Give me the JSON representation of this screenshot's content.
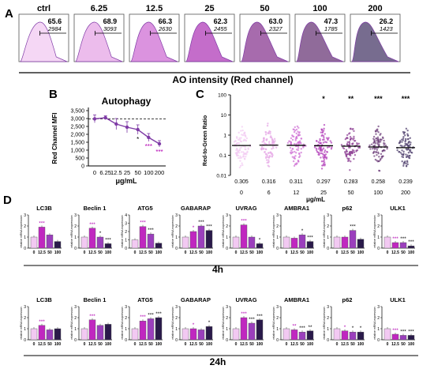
{
  "colors": {
    "c0": "#f2c9f2",
    "c1": "#e6a6e6",
    "c2": "#cf6fd4",
    "c3": "#b03cb8",
    "c4": "#8a3a92",
    "c5": "#6b3a78",
    "c6": "#4a3b6a",
    "accent": "#7f3ba6",
    "magenta": "#c027c0",
    "dark": "#2a1a4a",
    "star": "#b300b3"
  },
  "panel_labels": {
    "a": "A",
    "b": "B",
    "c": "C",
    "d": "D"
  },
  "chart_data": [
    {
      "type": "histogram-panels",
      "xlabel": "AO intensity (Red channel)",
      "panels": [
        {
          "label": "ctrl",
          "pct": "65.6",
          "mfi": "2984"
        },
        {
          "label": "6.25",
          "pct": "68.9",
          "mfi": "3093"
        },
        {
          "label": "12.5",
          "pct": "66.3",
          "mfi": "2630"
        },
        {
          "label": "25",
          "pct": "62.3",
          "mfi": "2455"
        },
        {
          "label": "50",
          "pct": "63.0",
          "mfi": "2327"
        },
        {
          "label": "100",
          "pct": "47.3",
          "mfi": "1785"
        },
        {
          "label": "200",
          "pct": "26.2",
          "mfi": "1423"
        }
      ]
    },
    {
      "type": "line",
      "title": "Autophagy",
      "ylabel": "Red Channel MFI",
      "xlabel": "μg/mL",
      "categories": [
        "0",
        "6.25",
        "12.5",
        "25",
        "50",
        "100",
        "200"
      ],
      "values": [
        2980,
        3050,
        2650,
        2450,
        2300,
        1800,
        1400
      ],
      "errors": [
        250,
        120,
        350,
        350,
        300,
        250,
        200
      ],
      "yticks": [
        "0",
        "500",
        "1,000",
        "1,500",
        "2,000",
        "2,500",
        "3,000",
        "3,500"
      ],
      "ylim": [
        0,
        3500
      ],
      "reference": 2980,
      "stars": [
        "",
        "",
        "",
        "",
        "*",
        "***",
        "***"
      ]
    },
    {
      "type": "scatter",
      "ylabel": "Red-to-Green Ratio",
      "xlabel": "μg/mL",
      "yscale": "log",
      "yticks": [
        "0.01",
        "0.1",
        "1",
        "10",
        "100"
      ],
      "categories": [
        "0",
        "6",
        "12",
        "25",
        "50",
        "100",
        "200"
      ],
      "medians": [
        "0.305",
        "0.316",
        "0.311",
        "0.297",
        "0.283",
        "0.258",
        "0.239"
      ],
      "stars": [
        "",
        "",
        "",
        "*",
        "**",
        "***",
        "***"
      ]
    },
    {
      "type": "bar-grid",
      "ylabel": "relative mRNA expression",
      "categories": [
        "0",
        "12.5",
        "50",
        "100"
      ],
      "rows": [
        {
          "time": "4h",
          "genes": [
            {
              "name": "LC3B",
              "values": [
                1.0,
                1.9,
                1.2,
                0.6
              ],
              "stars": [
                "",
                "***",
                "",
                ""
              ]
            },
            {
              "name": "Beclin 1",
              "values": [
                1.0,
                1.8,
                1.0,
                0.4
              ],
              "stars": [
                "",
                "***",
                "*",
                "***"
              ]
            },
            {
              "name": "ATG5",
              "values": [
                1.0,
                2.6,
                1.7,
                0.6
              ],
              "stars": [
                "",
                "***",
                "***",
                ""
              ]
            },
            {
              "name": "GABARAP",
              "values": [
                1.0,
                1.5,
                2.0,
                1.6
              ],
              "stars": [
                "",
                "*",
                "***",
                "***"
              ]
            },
            {
              "name": "UVRAG",
              "values": [
                1.0,
                2.1,
                1.0,
                0.4
              ],
              "stars": [
                "",
                "***",
                "",
                "*"
              ]
            },
            {
              "name": "AMBRA1",
              "values": [
                1.0,
                0.9,
                1.2,
                0.6
              ],
              "stars": [
                "",
                "",
                "*",
                "***"
              ]
            },
            {
              "name": "p62",
              "values": [
                1.0,
                1.0,
                1.6,
                0.8
              ],
              "stars": [
                "",
                "",
                "***",
                ""
              ]
            },
            {
              "name": "ULK1",
              "values": [
                1.0,
                0.5,
                0.5,
                0.2
              ],
              "stars": [
                "",
                "***",
                "***",
                "***"
              ]
            }
          ]
        },
        {
          "time": "24h",
          "genes": [
            {
              "name": "LC3B",
              "values": [
                1.0,
                1.3,
                0.9,
                1.0
              ],
              "stars": [
                "",
                "***",
                "",
                ""
              ]
            },
            {
              "name": "Beclin 1",
              "values": [
                1.0,
                1.8,
                1.3,
                1.4
              ],
              "stars": [
                "",
                "***",
                "",
                ""
              ]
            },
            {
              "name": "ATG5",
              "values": [
                1.0,
                1.7,
                1.9,
                2.0
              ],
              "stars": [
                "",
                "***",
                "***",
                "***"
              ]
            },
            {
              "name": "GABARAP",
              "values": [
                1.0,
                1.0,
                0.9,
                1.2
              ],
              "stars": [
                "",
                "*",
                "",
                "*"
              ]
            },
            {
              "name": "UVRAG",
              "values": [
                1.0,
                2.0,
                1.5,
                1.8
              ],
              "stars": [
                "",
                "***",
                "***",
                "***"
              ]
            },
            {
              "name": "AMBRA1",
              "values": [
                1.0,
                0.9,
                0.7,
                0.8
              ],
              "stars": [
                "",
                "**",
                "***",
                "**"
              ]
            },
            {
              "name": "p62",
              "values": [
                1.0,
                0.8,
                0.7,
                0.7
              ],
              "stars": [
                "",
                "*",
                "*",
                "*"
              ]
            },
            {
              "name": "ULK1",
              "values": [
                1.0,
                0.5,
                0.4,
                0.4
              ],
              "stars": [
                "",
                "***",
                "***",
                "***"
              ]
            }
          ]
        }
      ]
    }
  ]
}
